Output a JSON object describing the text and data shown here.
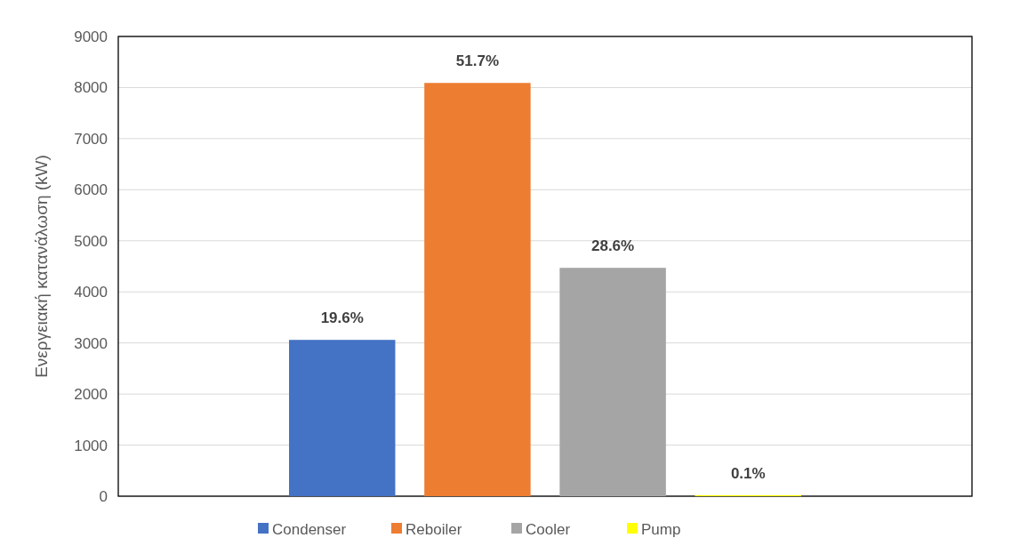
{
  "chart_data": {
    "type": "bar",
    "ylabel": "Ενεργειακή κατανάλωση (kW)",
    "categories": [
      null
    ],
    "series": [
      {
        "name": "Condenser",
        "color": "#4472c4",
        "values": [
          3060
        ]
      },
      {
        "name": "Reboiler",
        "color": "#ed7d31",
        "values": [
          8090
        ]
      },
      {
        "name": "Cooler",
        "color": "#a5a5a5",
        "values": [
          4470
        ]
      },
      {
        "name": "Pump",
        "color": "#ffff00",
        "values": [
          20
        ]
      }
    ],
    "annotations": [
      "19.6%",
      "51.7%",
      "28.6%",
      "0.1%"
    ],
    "ylim": [
      0,
      9000
    ],
    "yticks": [
      0,
      1000,
      2000,
      3000,
      4000,
      5000,
      6000,
      7000,
      8000,
      9000
    ],
    "grid": "y",
    "legend": "bottom"
  }
}
